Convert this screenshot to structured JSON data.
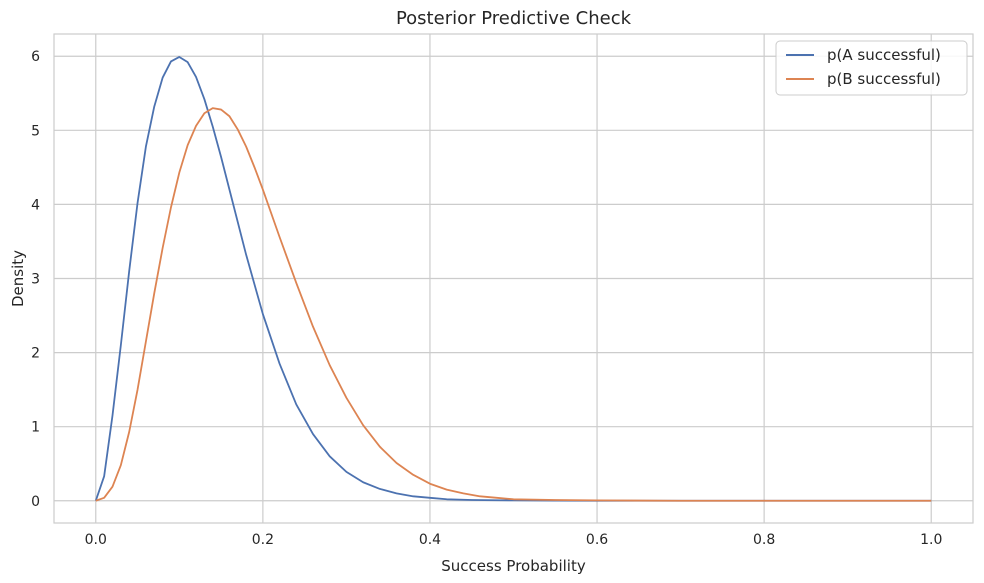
{
  "chart_data": {
    "type": "line",
    "title": "Posterior Predictive Check",
    "xlabel": "Success Probability",
    "ylabel": "Density",
    "xlim": [
      -0.05,
      1.05
    ],
    "ylim": [
      -0.3,
      6.3
    ],
    "xticks": [
      0.0,
      0.2,
      0.4,
      0.6,
      0.8,
      1.0
    ],
    "xtick_labels": [
      "0.0",
      "0.2",
      "0.4",
      "0.6",
      "0.8",
      "1.0"
    ],
    "yticks": [
      0,
      1,
      2,
      3,
      4,
      5,
      6
    ],
    "ytick_labels": [
      "0",
      "1",
      "2",
      "3",
      "4",
      "5",
      "6"
    ],
    "grid": true,
    "legend_position": "top-right",
    "series": [
      {
        "name": "p(A successful)",
        "color": "#4c72b0",
        "x": [
          0.0,
          0.01,
          0.02,
          0.03,
          0.04,
          0.05,
          0.06,
          0.07,
          0.08,
          0.09,
          0.1,
          0.11,
          0.12,
          0.13,
          0.14,
          0.15,
          0.16,
          0.18,
          0.2,
          0.22,
          0.24,
          0.26,
          0.28,
          0.3,
          0.32,
          0.34,
          0.36,
          0.38,
          0.4,
          0.42,
          0.45,
          0.5,
          0.55,
          0.6,
          0.7,
          0.8,
          0.9,
          1.0
        ],
        "values": [
          0.0,
          0.33,
          1.15,
          2.1,
          3.1,
          4.02,
          4.78,
          5.32,
          5.71,
          5.93,
          5.99,
          5.92,
          5.72,
          5.42,
          5.05,
          4.64,
          4.2,
          3.32,
          2.52,
          1.85,
          1.3,
          0.9,
          0.6,
          0.39,
          0.25,
          0.16,
          0.1,
          0.06,
          0.04,
          0.02,
          0.01,
          0.005,
          0.002,
          0.0,
          0.0,
          0.0,
          0.0,
          0.0
        ]
      },
      {
        "name": "p(B successful)",
        "color": "#dd8452",
        "x": [
          0.0,
          0.01,
          0.02,
          0.03,
          0.04,
          0.05,
          0.06,
          0.07,
          0.08,
          0.09,
          0.1,
          0.11,
          0.12,
          0.13,
          0.14,
          0.15,
          0.16,
          0.17,
          0.18,
          0.19,
          0.2,
          0.22,
          0.24,
          0.26,
          0.28,
          0.3,
          0.32,
          0.34,
          0.36,
          0.38,
          0.4,
          0.42,
          0.44,
          0.46,
          0.48,
          0.5,
          0.55,
          0.6,
          0.7,
          0.8,
          0.9,
          1.0
        ],
        "values": [
          0.0,
          0.04,
          0.19,
          0.48,
          0.93,
          1.5,
          2.15,
          2.8,
          3.41,
          3.96,
          4.43,
          4.8,
          5.06,
          5.23,
          5.3,
          5.28,
          5.19,
          5.01,
          4.78,
          4.5,
          4.2,
          3.56,
          2.94,
          2.35,
          1.83,
          1.39,
          1.02,
          0.73,
          0.51,
          0.35,
          0.23,
          0.15,
          0.1,
          0.06,
          0.04,
          0.02,
          0.01,
          0.005,
          0.0,
          0.0,
          0.0,
          0.0
        ]
      }
    ]
  }
}
